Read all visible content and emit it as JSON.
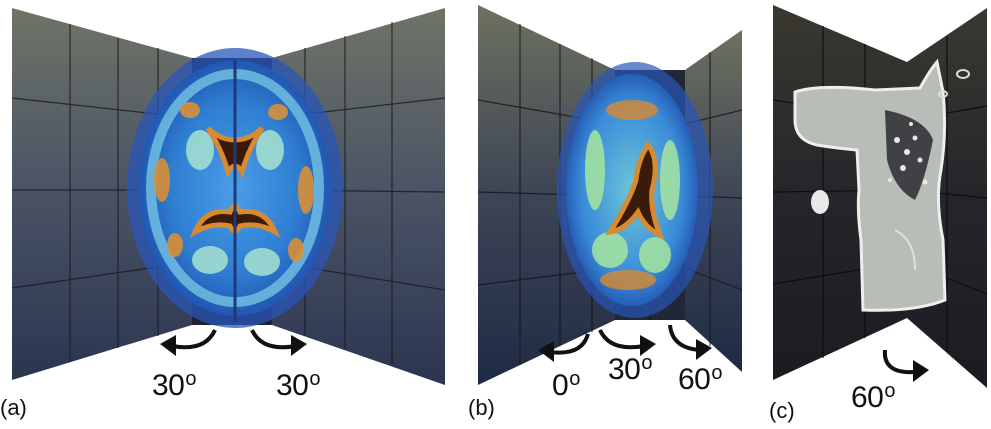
{
  "panels": [
    {
      "caption": "(a)",
      "angles": [
        "30",
        "30"
      ]
    },
    {
      "caption": "(b)",
      "angles": [
        "0",
        "30",
        "60"
      ]
    },
    {
      "caption": "(c)",
      "angles": [
        "60"
      ]
    }
  ],
  "degree_mark": "o",
  "colors": {
    "wall_dark": "#2a2f3a",
    "wall_light": "#8a8c80",
    "brain_blue": "#3a8ad8",
    "brain_cyan": "#7fd0e8",
    "brain_orange": "#d88a30",
    "brain_dark": "#3a1a08",
    "ct_gray": "#c8ccc8",
    "arrow": "#111111"
  }
}
